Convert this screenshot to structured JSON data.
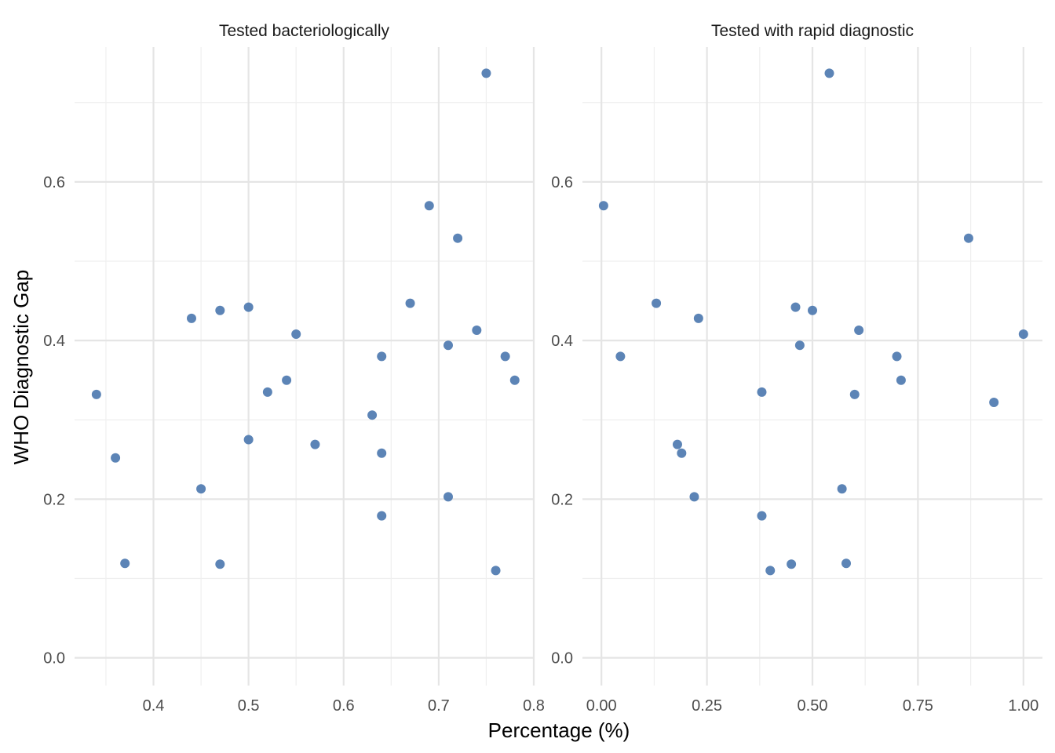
{
  "chart_data": {
    "type": "scatter",
    "xlabel": "Percentage (%)",
    "ylabel": "WHO Diagnostic Gap",
    "grid": true,
    "point_color": "#4e79b0",
    "y_ticks": [
      "0.0",
      "0.2",
      "0.4",
      "0.6"
    ],
    "y_tick_values": [
      0.0,
      0.2,
      0.4,
      0.6
    ],
    "ylim": [
      -0.035,
      0.77
    ],
    "panels": [
      {
        "title": "Tested bacteriologically",
        "xlim": [
          0.317,
          0.8
        ],
        "x_ticks": [
          "0.4",
          "0.5",
          "0.6",
          "0.7",
          "0.8"
        ],
        "x_tick_values": [
          0.4,
          0.5,
          0.6,
          0.7,
          0.8
        ],
        "points": [
          {
            "x": 0.34,
            "y": 0.332
          },
          {
            "x": 0.36,
            "y": 0.252
          },
          {
            "x": 0.37,
            "y": 0.119
          },
          {
            "x": 0.44,
            "y": 0.428
          },
          {
            "x": 0.45,
            "y": 0.213
          },
          {
            "x": 0.47,
            "y": 0.438
          },
          {
            "x": 0.47,
            "y": 0.118
          },
          {
            "x": 0.5,
            "y": 0.442
          },
          {
            "x": 0.5,
            "y": 0.275
          },
          {
            "x": 0.52,
            "y": 0.335
          },
          {
            "x": 0.54,
            "y": 0.35
          },
          {
            "x": 0.55,
            "y": 0.408
          },
          {
            "x": 0.57,
            "y": 0.269
          },
          {
            "x": 0.63,
            "y": 0.306
          },
          {
            "x": 0.64,
            "y": 0.38
          },
          {
            "x": 0.64,
            "y": 0.258
          },
          {
            "x": 0.64,
            "y": 0.179
          },
          {
            "x": 0.67,
            "y": 0.447
          },
          {
            "x": 0.69,
            "y": 0.57
          },
          {
            "x": 0.71,
            "y": 0.394
          },
          {
            "x": 0.71,
            "y": 0.203
          },
          {
            "x": 0.72,
            "y": 0.529
          },
          {
            "x": 0.74,
            "y": 0.413
          },
          {
            "x": 0.75,
            "y": 0.737
          },
          {
            "x": 0.76,
            "y": 0.11
          },
          {
            "x": 0.77,
            "y": 0.38
          },
          {
            "x": 0.78,
            "y": 0.35
          }
        ]
      },
      {
        "title": "Tested with rapid diagnostic",
        "xlim": [
          -0.045,
          1.045
        ],
        "x_ticks": [
          "0.00",
          "0.25",
          "0.50",
          "0.75",
          "1.00"
        ],
        "x_tick_values": [
          0.0,
          0.25,
          0.5,
          0.75,
          1.0
        ],
        "points": [
          {
            "x": 0.005,
            "y": 0.57
          },
          {
            "x": 0.045,
            "y": 0.38
          },
          {
            "x": 0.13,
            "y": 0.447
          },
          {
            "x": 0.18,
            "y": 0.269
          },
          {
            "x": 0.19,
            "y": 0.258
          },
          {
            "x": 0.22,
            "y": 0.203
          },
          {
            "x": 0.23,
            "y": 0.428
          },
          {
            "x": 0.38,
            "y": 0.335
          },
          {
            "x": 0.38,
            "y": 0.179
          },
          {
            "x": 0.4,
            "y": 0.11
          },
          {
            "x": 0.45,
            "y": 0.118
          },
          {
            "x": 0.46,
            "y": 0.442
          },
          {
            "x": 0.47,
            "y": 0.394
          },
          {
            "x": 0.5,
            "y": 0.438
          },
          {
            "x": 0.54,
            "y": 0.737
          },
          {
            "x": 0.57,
            "y": 0.213
          },
          {
            "x": 0.58,
            "y": 0.119
          },
          {
            "x": 0.6,
            "y": 0.332
          },
          {
            "x": 0.61,
            "y": 0.413
          },
          {
            "x": 0.7,
            "y": 0.38
          },
          {
            "x": 0.71,
            "y": 0.35
          },
          {
            "x": 0.87,
            "y": 0.529
          },
          {
            "x": 0.93,
            "y": 0.322
          },
          {
            "x": 1.0,
            "y": 0.408
          }
        ]
      }
    ]
  }
}
